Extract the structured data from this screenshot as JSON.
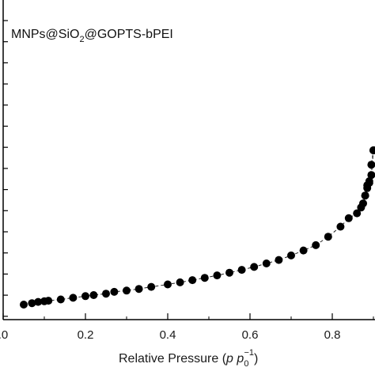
{
  "chart_data": {
    "type": "scatter",
    "title_main": "MNPs@SiO",
    "title_sub": "2",
    "title_rest": "@GOPTS-bPEI",
    "xlabel_prefix": "Relative Pressure (",
    "xlabel_p": "p",
    "xlabel_p0": "p",
    "xlabel_sub": "0",
    "xlabel_sup": "−1",
    "xlabel_suffix": ")",
    "ylabel": "",
    "xlim": [
      0.0,
      0.9
    ],
    "x_ticks": [
      0.0,
      0.2,
      0.4,
      0.6,
      0.8
    ],
    "x_tick_labels": [
      ".0",
      "0.2",
      "0.4",
      "0.6",
      "0.8"
    ],
    "grid": false,
    "legend": "none",
    "series": [
      {
        "marker": "filled-circle",
        "color": "#000000",
        "line": "dashed",
        "points_normalized_y": true,
        "x": [
          0.05,
          0.07,
          0.085,
          0.1,
          0.11,
          0.14,
          0.17,
          0.2,
          0.22,
          0.25,
          0.27,
          0.3,
          0.33,
          0.36,
          0.4,
          0.43,
          0.46,
          0.49,
          0.52,
          0.55,
          0.58,
          0.61,
          0.64,
          0.67,
          0.7,
          0.73,
          0.76,
          0.79,
          0.82,
          0.84,
          0.86,
          0.87,
          0.875,
          0.88,
          0.885,
          0.89,
          0.895,
          0.9
        ],
        "y": [
          0.0,
          0.007,
          0.013,
          0.016,
          0.019,
          0.025,
          0.033,
          0.041,
          0.046,
          0.053,
          0.062,
          0.068,
          0.076,
          0.086,
          0.098,
          0.108,
          0.119,
          0.13,
          0.142,
          0.155,
          0.169,
          0.183,
          0.2,
          0.217,
          0.239,
          0.263,
          0.289,
          0.33,
          0.379,
          0.42,
          0.444,
          0.472,
          0.492,
          0.53,
          0.566,
          0.592,
          0.68,
          0.75
        ]
      },
      {
        "marker": "filled-circle",
        "color": "#000000",
        "line": "dashed",
        "x": [
          0.9,
          0.895,
          0.89,
          0.885,
          0.88
        ],
        "y": [
          0.75,
          0.63,
          0.6,
          0.58,
          0.53
        ]
      }
    ]
  }
}
